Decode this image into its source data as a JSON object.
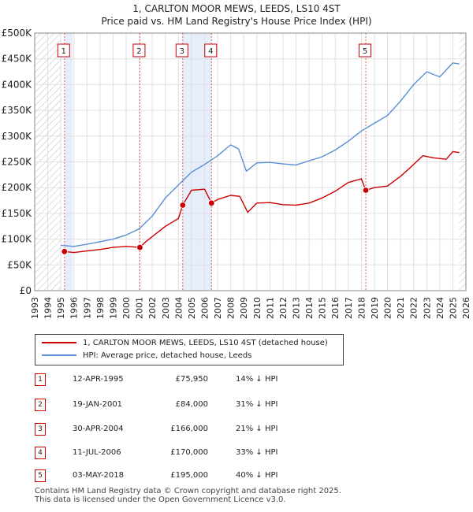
{
  "chart_data": {
    "type": "line",
    "title": "1, CARLTON MOOR MEWS, LEEDS, LS10 4ST",
    "subtitle": "Price paid vs. HM Land Registry's House Price Index (HPI)",
    "xlim": [
      1993,
      2026
    ],
    "ylim": [
      0,
      500000
    ],
    "x_ticks": [
      "1993",
      "1994",
      "1995",
      "1996",
      "1997",
      "1998",
      "1999",
      "2000",
      "2001",
      "2002",
      "2003",
      "2004",
      "2005",
      "2006",
      "2007",
      "2008",
      "2009",
      "2010",
      "2011",
      "2012",
      "2013",
      "2014",
      "2015",
      "2016",
      "2017",
      "2018",
      "2019",
      "2020",
      "2021",
      "2022",
      "2023",
      "2024",
      "2025",
      "2026"
    ],
    "y_ticks": [
      {
        "value": 0,
        "label": "£0"
      },
      {
        "value": 50000,
        "label": "£50K"
      },
      {
        "value": 100000,
        "label": "£100K"
      },
      {
        "value": 150000,
        "label": "£150K"
      },
      {
        "value": 200000,
        "label": "£200K"
      },
      {
        "value": 250000,
        "label": "£250K"
      },
      {
        "value": 300000,
        "label": "£300K"
      },
      {
        "value": 350000,
        "label": "£350K"
      },
      {
        "value": 400000,
        "label": "£400K"
      },
      {
        "value": 450000,
        "label": "£450K"
      },
      {
        "value": 500000,
        "label": "£500K"
      }
    ],
    "hatched_before": 1995.0,
    "hatched_after": 2025.5,
    "shaded_bands": [
      [
        1995.28,
        1995.9
      ],
      [
        2004.33,
        2006.53
      ]
    ],
    "series": [
      {
        "name": "1, CARLTON MOOR MEWS, LEEDS, LS10 4ST (detached house)",
        "color": "#cc0000",
        "points": [
          [
            1995.28,
            75950
          ],
          [
            1996,
            74000
          ],
          [
            1997,
            77000
          ],
          [
            1998,
            80000
          ],
          [
            1999,
            84000
          ],
          [
            2000,
            86000
          ],
          [
            2001.05,
            84000
          ],
          [
            2001.5,
            95000
          ],
          [
            2002,
            105000
          ],
          [
            2003,
            125000
          ],
          [
            2004.0,
            140000
          ],
          [
            2004.33,
            166000
          ],
          [
            2005,
            195000
          ],
          [
            2006,
            197000
          ],
          [
            2006.53,
            170000
          ],
          [
            2007,
            177000
          ],
          [
            2008,
            185000
          ],
          [
            2008.7,
            183000
          ],
          [
            2009.3,
            152000
          ],
          [
            2010,
            170000
          ],
          [
            2011,
            171000
          ],
          [
            2012,
            167000
          ],
          [
            2013,
            166000
          ],
          [
            2014,
            170000
          ],
          [
            2015,
            180000
          ],
          [
            2016,
            193000
          ],
          [
            2017,
            210000
          ],
          [
            2018.0,
            217000
          ],
          [
            2018.34,
            195000
          ],
          [
            2019,
            200000
          ],
          [
            2020,
            203000
          ],
          [
            2021,
            222000
          ],
          [
            2022,
            245000
          ],
          [
            2022.7,
            262000
          ],
          [
            2023.5,
            258000
          ],
          [
            2024.5,
            255000
          ],
          [
            2025,
            270000
          ],
          [
            2025.5,
            268000
          ]
        ]
      },
      {
        "name": "HPI: Average price, detached house, Leeds",
        "color": "#5b8fd4",
        "points": [
          [
            1995,
            88000
          ],
          [
            1996,
            86000
          ],
          [
            1997,
            90000
          ],
          [
            1998,
            95000
          ],
          [
            1999,
            100000
          ],
          [
            2000,
            108000
          ],
          [
            2001,
            120000
          ],
          [
            2002,
            145000
          ],
          [
            2003,
            180000
          ],
          [
            2004,
            205000
          ],
          [
            2005,
            230000
          ],
          [
            2006,
            245000
          ],
          [
            2007,
            262000
          ],
          [
            2008,
            283000
          ],
          [
            2008.6,
            275000
          ],
          [
            2009.2,
            232000
          ],
          [
            2010,
            248000
          ],
          [
            2011,
            249000
          ],
          [
            2012,
            246000
          ],
          [
            2013,
            244000
          ],
          [
            2014,
            252000
          ],
          [
            2015,
            260000
          ],
          [
            2016,
            273000
          ],
          [
            2017,
            290000
          ],
          [
            2018,
            310000
          ],
          [
            2019,
            325000
          ],
          [
            2020,
            340000
          ],
          [
            2021,
            368000
          ],
          [
            2022,
            400000
          ],
          [
            2023,
            425000
          ],
          [
            2024,
            415000
          ],
          [
            2025,
            442000
          ],
          [
            2025.5,
            440000
          ]
        ]
      }
    ],
    "sales": [
      {
        "num": "1",
        "x": 1995.28,
        "y": 75950
      },
      {
        "num": "2",
        "x": 2001.05,
        "y": 84000
      },
      {
        "num": "3",
        "x": 2004.33,
        "y": 166000
      },
      {
        "num": "4",
        "x": 2006.53,
        "y": 170000
      },
      {
        "num": "5",
        "x": 2018.34,
        "y": 195000
      }
    ]
  },
  "legend": {
    "red_label": "1, CARLTON MOOR MEWS, LEEDS, LS10 4ST (detached house)",
    "blue_label": "HPI: Average price, detached house, Leeds",
    "red_color": "#cc0000",
    "blue_color": "#5b8fd4"
  },
  "sales_table": [
    {
      "num": "1",
      "date": "12-APR-1995",
      "price": "£75,950",
      "hpi": "14% ↓ HPI"
    },
    {
      "num": "2",
      "date": "19-JAN-2001",
      "price": "£84,000",
      "hpi": "31% ↓ HPI"
    },
    {
      "num": "3",
      "date": "30-APR-2004",
      "price": "£166,000",
      "hpi": "21% ↓ HPI"
    },
    {
      "num": "4",
      "date": "11-JUL-2006",
      "price": "£170,000",
      "hpi": "33% ↓ HPI"
    },
    {
      "num": "5",
      "date": "03-MAY-2018",
      "price": "£195,000",
      "hpi": "40% ↓ HPI"
    }
  ],
  "footer": {
    "line1": "Contains HM Land Registry data © Crown copyright and database right 2025.",
    "line2": "This data is licensed under the Open Government Licence v3.0."
  }
}
